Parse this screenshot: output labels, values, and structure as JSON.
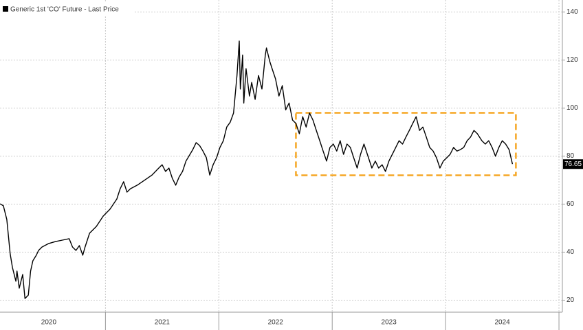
{
  "chart_data": {
    "type": "line",
    "legend": "top-left",
    "grid": true,
    "xlim": [
      2020.07,
      2025.03
    ],
    "ylim": [
      15,
      145
    ],
    "yticks": [
      20,
      40,
      60,
      80,
      100,
      120,
      140
    ],
    "xticks": [
      {
        "value": 2020.5,
        "label": "2020"
      },
      {
        "value": 2021.5,
        "label": "2021"
      },
      {
        "value": 2022.5,
        "label": "2022"
      },
      {
        "value": 2023.5,
        "label": "2023"
      },
      {
        "value": 2024.5,
        "label": "2024"
      }
    ],
    "xseparators": [
      2021,
      2022,
      2023,
      2024,
      2025
    ],
    "x": [
      2020.07,
      2020.1,
      2020.13,
      2020.16,
      2020.18,
      2020.21,
      2020.22,
      2020.24,
      2020.27,
      2020.29,
      2020.32,
      2020.34,
      2020.36,
      2020.39,
      2020.41,
      2020.44,
      2020.5,
      2020.56,
      2020.62,
      2020.68,
      2020.71,
      2020.74,
      2020.77,
      2020.8,
      2020.82,
      2020.86,
      2020.92,
      2020.98,
      2021.04,
      2021.1,
      2021.13,
      2021.16,
      2021.19,
      2021.22,
      2021.28,
      2021.35,
      2021.41,
      2021.47,
      2021.5,
      2021.53,
      2021.56,
      2021.59,
      2021.62,
      2021.65,
      2021.68,
      2021.71,
      2021.77,
      2021.8,
      2021.83,
      2021.86,
      2021.89,
      2021.92,
      2021.95,
      2021.98,
      2022.01,
      2022.04,
      2022.07,
      2022.1,
      2022.13,
      2022.16,
      2022.18,
      2022.19,
      2022.21,
      2022.22,
      2022.24,
      2022.27,
      2022.29,
      2022.32,
      2022.35,
      2022.38,
      2022.41,
      2022.42,
      2022.45,
      2022.47,
      2022.5,
      2022.53,
      2022.56,
      2022.59,
      2022.62,
      2022.65,
      2022.68,
      2022.71,
      2022.74,
      2022.77,
      2022.8,
      2022.83,
      2022.86,
      2022.89,
      2022.92,
      2022.95,
      2022.98,
      2023.01,
      2023.04,
      2023.07,
      2023.1,
      2023.13,
      2023.16,
      2023.19,
      2023.22,
      2023.25,
      2023.28,
      2023.32,
      2023.35,
      2023.38,
      2023.41,
      2023.44,
      2023.47,
      2023.5,
      2023.53,
      2023.56,
      2023.59,
      2023.62,
      2023.65,
      2023.68,
      2023.71,
      2023.74,
      2023.77,
      2023.8,
      2023.83,
      2023.86,
      2023.89,
      2023.92,
      2023.95,
      2023.98,
      2024.01,
      2024.04,
      2024.07,
      2024.1,
      2024.13,
      2024.16,
      2024.19,
      2024.22,
      2024.25,
      2024.28,
      2024.32,
      2024.35,
      2024.38,
      2024.41,
      2024.44,
      2024.47,
      2024.5,
      2024.53,
      2024.56,
      2024.59
    ],
    "series": [
      {
        "name": "Generic 1st 'CO' Future - Last Price",
        "color": "#000000",
        "values": [
          60.1,
          59.3,
          53.6,
          39.3,
          33.6,
          27.9,
          32.1,
          25,
          30.7,
          20.7,
          22.1,
          32.1,
          36.4,
          38.7,
          40.7,
          42.1,
          43.6,
          44.4,
          45,
          45.6,
          42.1,
          40.7,
          42.7,
          38.7,
          42.1,
          47.9,
          50.7,
          55,
          57.9,
          62.1,
          66.4,
          69.3,
          65,
          66.4,
          67.9,
          70.1,
          72.1,
          75,
          76.4,
          73.6,
          75,
          70.7,
          67.9,
          71.3,
          73.6,
          77.9,
          82.7,
          85.6,
          84.4,
          82.1,
          79.3,
          72.1,
          76.4,
          79.3,
          83.6,
          86.4,
          92.1,
          94.1,
          97.9,
          113.6,
          127.9,
          107.9,
          122.1,
          102.1,
          116.4,
          105,
          110.7,
          103.6,
          113.6,
          107.9,
          122.1,
          125,
          119.3,
          116.4,
          112.1,
          105,
          109.3,
          99.3,
          102.1,
          95,
          93.6,
          89.3,
          96.4,
          92.1,
          97.9,
          95,
          90.7,
          86.4,
          82.1,
          77.9,
          83.6,
          85,
          82.1,
          86.4,
          80.7,
          85,
          83.6,
          79.3,
          75,
          80.7,
          85,
          79.3,
          75,
          77.9,
          75,
          76.4,
          73.6,
          77.9,
          80.7,
          83.6,
          86.4,
          85,
          87.9,
          90.7,
          93.6,
          96.4,
          90.7,
          92.1,
          87.9,
          83.6,
          82.1,
          79.3,
          75,
          77.9,
          79.3,
          80.7,
          83.6,
          82.1,
          82.7,
          83.6,
          86.4,
          87.9,
          90.7,
          89.3,
          86.4,
          85,
          86.4,
          83.6,
          79.9,
          83.6,
          86.4,
          85,
          82.7,
          76.65
        ]
      }
    ],
    "annotation_box": {
      "x0": 2022.68,
      "x1": 2024.62,
      "y0": 72,
      "y1": 98,
      "color": "#f5a623"
    }
  }
}
